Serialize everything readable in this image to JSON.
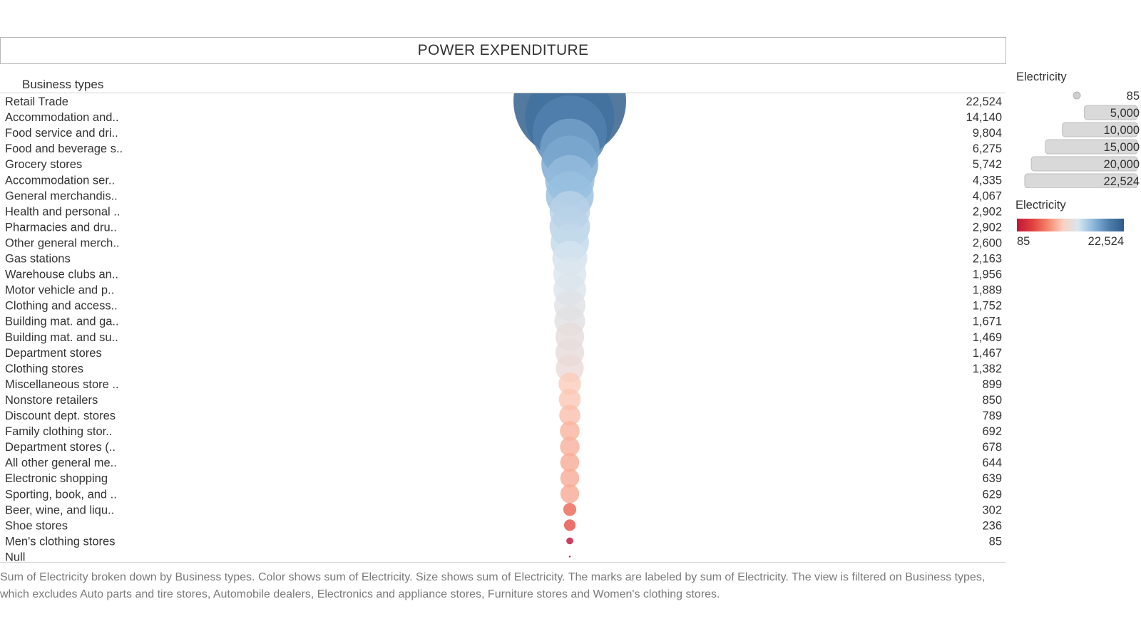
{
  "chart_data": {
    "type": "scatter",
    "title": "POWER EXPENDITURE",
    "row_header": "Business types",
    "categories": [
      "Retail Trade",
      "Accommodation and..",
      "Food service and dri..",
      "Food and beverage s..",
      "Grocery stores",
      "Accommodation ser..",
      "General merchandis..",
      "Health and personal ..",
      "Pharmacies and dru..",
      "Other general merch..",
      "Gas stations",
      "Warehouse clubs an..",
      "Motor vehicle and p..",
      "Clothing and access..",
      "Building mat. and ga..",
      "Building mat. and su..",
      "Department stores",
      "Clothing stores",
      "Miscellaneous store ..",
      "Nonstore retailers",
      "Discount dept. stores",
      "Family clothing stor..",
      "Department stores (..",
      "All other general me..",
      "Electronic shopping",
      "Sporting, book, and  ..",
      "Beer, wine, and liqu..",
      "Shoe stores",
      "Men's clothing stores",
      "Null"
    ],
    "values": [
      22524,
      14140,
      9804,
      6275,
      5742,
      4335,
      4067,
      2902,
      2902,
      2600,
      2163,
      1956,
      1889,
      1752,
      1671,
      1469,
      1467,
      1382,
      899,
      850,
      789,
      692,
      678,
      644,
      639,
      629,
      302,
      236,
      85,
      null
    ],
    "value_labels": [
      "22,524",
      "14,140",
      "9,804",
      "6,275",
      "5,742",
      "4,335",
      "4,067",
      "2,902",
      "2,902",
      "2,600",
      "2,163",
      "1,956",
      "1,889",
      "1,752",
      "1,671",
      "1,469",
      "1,467",
      "1,382",
      "899",
      "850",
      "789",
      "692",
      "678",
      "644",
      "639",
      "629",
      "302",
      "236",
      "85",
      ""
    ],
    "measure": "Electricity",
    "encoding": "color and size show sum of Electricity",
    "size_legend": {
      "title": "Electricity",
      "values": [
        85,
        5000,
        10000,
        15000,
        20000,
        22524
      ],
      "labels": [
        "85",
        "5,000",
        "10,000",
        "15,000",
        "20,000",
        "22,524"
      ]
    },
    "color_legend": {
      "title": "Electricity",
      "min_label": "85",
      "max_label": "22,524",
      "min_value": 85,
      "max_value": 22524,
      "stops": [
        "#c0163a",
        "#e0403e",
        "#f4846a",
        "#fbd0c0",
        "#d8e6f0",
        "#8db8dc",
        "#4f7fad",
        "#2e5b8a"
      ]
    }
  },
  "caption": "Sum of Electricity broken down by Business types.  Color shows sum of Electricity.  Size shows sum of Electricity.  The marks are labeled by sum of Electricity. The view is filtered on Business types, which excludes Auto parts and tire stores, Automobile dealers, Electronics and appliance stores, Furniture stores and Women's clothing stores."
}
